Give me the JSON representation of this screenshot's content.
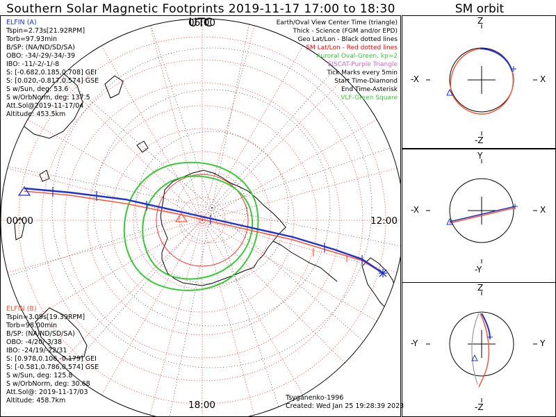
{
  "title": "Southern Solar Magnetic Footprints 2019-11-17 17:00 to 18:30 UTC",
  "sm_title": "SM orbit",
  "mlt_labels": {
    "top": "06:00",
    "left": "00:00",
    "right": "12:00",
    "bottom": "18:00"
  },
  "elfin_a": {
    "name": "ELFIN (A)",
    "color": "#1a33cc",
    "lines": [
      "Tspin=2.73s[21.92RPM]",
      "Torb=97.93min",
      "B/SP: (NA/ND/SD/SA)",
      "OBO: -34/-29/-34/-39",
      "IBO: -11/-2/-1/-8",
      "S: [-0.682,0.185,0.708] GEI",
      "S: [0.020,-0.817,0.574] GSE",
      "S w/Sun, deg: 53.6",
      "S w/OrbNorm, deg: 137.5",
      "Att.Sol@2019-11-17/04",
      "Altitude: 453.5km"
    ]
  },
  "elfin_b": {
    "name": "ELFIN (B)",
    "color": "#ff5533",
    "lines": [
      "Tspin=3.09s[19.39RPM]",
      "Torb=98.00min",
      "B/SP: (NA/ND/SD/SA)",
      "OBO: -4/20/-3/38",
      "IBO: -24/19/-22/31",
      "S: [0.978,0.106,-0.179] GEI",
      "S: [-0.581,0.786,0.574] GSE",
      "S w/Sun, deg: 125.8",
      "S w/OrbNorm, deg: 30.68",
      "Att.Sol@: 2019-11-17/03",
      "Altitude: 458.7km"
    ]
  },
  "legend": [
    {
      "text": "Earth/Oval View Center Time (triangle)",
      "color": "#000000"
    },
    {
      "text": "Thick - Science (FGM and/or EPD)",
      "color": "#000000"
    },
    {
      "text": "Geo Lat/Lon - Black dotted lines",
      "color": "#000000"
    },
    {
      "text": "SM Lat/Lon - Red dotted lines",
      "color": "#ff0000"
    },
    {
      "text": "Auroral Oval-Green, kp=2",
      "color": "#33cc33"
    },
    {
      "text": "EISCAT-Purple Triangle",
      "color": "#cc66cc"
    },
    {
      "text": "Tick Marks every 5min",
      "color": "#000000"
    },
    {
      "text": "Start Time-Diamond",
      "color": "#000000"
    },
    {
      "text": "End Time-Asterisk",
      "color": "#000000"
    },
    {
      "text": "VLF-Green Square",
      "color": "#33cc33"
    }
  ],
  "credit": {
    "author": "Tsyganenko-1996",
    "created": "Created: Wed Jan 25 19:28:39 2023"
  },
  "sm_panels": [
    {
      "top": "Z",
      "bottom": "-Z",
      "left": "-X",
      "right": "X"
    },
    {
      "top": "Y",
      "bottom": "-Y",
      "left": "-X",
      "right": "X"
    },
    {
      "top": "Z",
      "bottom": "-Z",
      "left": "-Y",
      "right": "Y"
    }
  ],
  "chart_data": {
    "type": "polar-map",
    "projection": "southern hemisphere, SM coordinates, MLT around the rim",
    "mlt_axis": [
      "00:00",
      "06:00",
      "12:00",
      "18:00"
    ],
    "series": [
      {
        "name": "ELFIN (A)",
        "color": "#1a33cc"
      },
      {
        "name": "ELFIN (B)",
        "color": "#ff5533"
      }
    ],
    "auroral_oval_kp": 2
  }
}
